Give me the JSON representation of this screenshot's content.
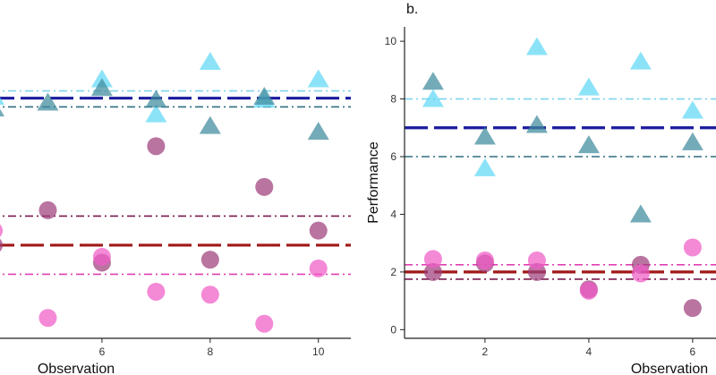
{
  "chart_data": [
    {
      "type": "scatter",
      "panel_label": "",
      "xlabel": "Observation",
      "ylabel": "",
      "xlim": [
        3.95,
        10.6
      ],
      "ylim": [
        -0.2,
        10.5
      ],
      "xticks": [
        6,
        8,
        10
      ],
      "yticks": [],
      "grid": false,
      "series": [
        {
          "name": "cyan",
          "shape": "triangle",
          "color": "#5FD8F5",
          "x": [
            4,
            6,
            7,
            8,
            9,
            10
          ],
          "y": [
            8.1,
            8.7,
            7.5,
            9.3,
            8.0,
            8.7
          ]
        },
        {
          "name": "teal",
          "shape": "triangle",
          "color": "#3E8A9C",
          "x": [
            4,
            5,
            6,
            7,
            8,
            9,
            10
          ],
          "y": [
            7.7,
            7.9,
            8.4,
            8.0,
            7.1,
            8.1,
            6.9
          ]
        },
        {
          "name": "purple",
          "shape": "circle",
          "color": "#9E3F7C",
          "x": [
            4,
            5,
            6,
            7,
            8,
            9,
            10
          ],
          "y": [
            3.0,
            4.2,
            2.4,
            6.4,
            2.5,
            5.0,
            3.5
          ]
        },
        {
          "name": "pink",
          "shape": "circle",
          "color": "#F05BC6",
          "x": [
            4,
            5,
            6,
            7,
            8,
            9,
            10
          ],
          "y": [
            3.5,
            0.5,
            2.6,
            1.4,
            1.3,
            0.3,
            2.2
          ]
        }
      ],
      "lines": [
        {
          "y": 8.3,
          "color": "#7FD3EC",
          "style": "dotdash",
          "width": 1.6
        },
        {
          "y": 7.75,
          "color": "#2F6F80",
          "style": "dotdash",
          "width": 1.6
        },
        {
          "y": 8.05,
          "color": "#1A1A9E",
          "style": "longdash",
          "width": 3.2
        },
        {
          "y": 4.0,
          "color": "#7A1A4E",
          "style": "dotdash",
          "width": 1.6
        },
        {
          "y": 2.0,
          "color": "#E040B0",
          "style": "dotdash",
          "width": 1.6
        },
        {
          "y": 3.0,
          "color": "#A01818",
          "style": "longdash",
          "width": 3.2
        }
      ]
    },
    {
      "type": "scatter",
      "panel_label": "b.",
      "xlabel": "Observation",
      "ylabel": "Performance",
      "xlim": [
        0.45,
        6.45
      ],
      "ylim": [
        -0.3,
        10.5
      ],
      "xticks": [
        2,
        4,
        6
      ],
      "yticks": [
        0,
        2,
        4,
        6,
        8,
        10
      ],
      "grid": false,
      "series": [
        {
          "name": "cyan",
          "shape": "triangle",
          "color": "#5FD8F5",
          "x": [
            1,
            2,
            3,
            4,
            5,
            6
          ],
          "y": [
            8.0,
            5.6,
            9.8,
            8.4,
            9.3,
            7.6
          ]
        },
        {
          "name": "teal",
          "shape": "triangle",
          "color": "#3E8A9C",
          "x": [
            1,
            2,
            3,
            4,
            5,
            6
          ],
          "y": [
            8.6,
            6.7,
            7.1,
            6.4,
            4.0,
            6.5
          ]
        },
        {
          "name": "purple",
          "shape": "circle",
          "color": "#9E3F7C",
          "x": [
            1,
            2,
            3,
            4,
            5,
            6
          ],
          "y": [
            2.0,
            2.3,
            2.0,
            1.4,
            2.25,
            0.75
          ]
        },
        {
          "name": "pink",
          "shape": "circle",
          "color": "#F05BC6",
          "x": [
            1,
            2,
            3,
            4,
            5,
            6
          ],
          "y": [
            2.45,
            2.4,
            2.4,
            1.35,
            1.95,
            2.85
          ]
        }
      ],
      "lines": [
        {
          "y": 8.0,
          "color": "#7FD3EC",
          "style": "dotdash",
          "width": 1.6
        },
        {
          "y": 6.0,
          "color": "#2F6F80",
          "style": "dotdash",
          "width": 1.6
        },
        {
          "y": 7.0,
          "color": "#1A1A9E",
          "style": "longdash",
          "width": 3.2
        },
        {
          "y": 2.25,
          "color": "#E040B0",
          "style": "dotdash",
          "width": 1.6
        },
        {
          "y": 1.75,
          "color": "#7A1A4E",
          "style": "dotdash",
          "width": 1.6
        },
        {
          "y": 2.0,
          "color": "#A01818",
          "style": "longdash",
          "width": 3.2
        }
      ]
    }
  ]
}
